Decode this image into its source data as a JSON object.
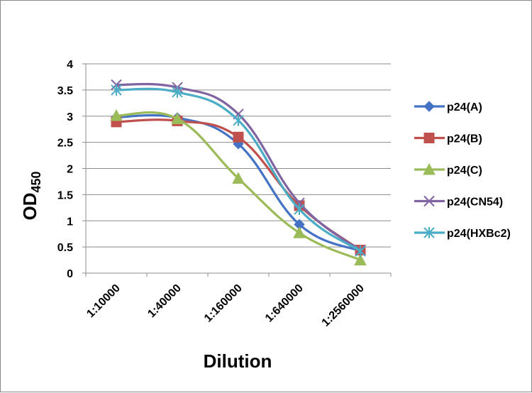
{
  "chart_data": {
    "type": "line",
    "title": "",
    "xlabel": "Dilution",
    "ylabel_main": "OD",
    "ylabel_sub": "450",
    "categories": [
      "1:10000",
      "1:40000",
      "1:160000",
      "1:640000",
      "1:2560000"
    ],
    "ylim": [
      0,
      4
    ],
    "yticks": [
      "0",
      "0.5",
      "1",
      "1.5",
      "2",
      "2.5",
      "3",
      "3.5",
      "4"
    ],
    "grid": true,
    "legend_position": "right",
    "series": [
      {
        "name": "p24(A)",
        "color": "#4472C4",
        "marker": "diamond",
        "values": [
          2.98,
          2.97,
          2.47,
          0.93,
          0.42
        ]
      },
      {
        "name": "p24(B)",
        "color": "#C0504D",
        "marker": "square",
        "values": [
          2.89,
          2.91,
          2.6,
          1.29,
          0.44
        ]
      },
      {
        "name": "p24(C)",
        "color": "#9BBB59",
        "marker": "triangle",
        "values": [
          3.01,
          2.95,
          1.81,
          0.77,
          0.25
        ]
      },
      {
        "name": "p24(CN54)",
        "color": "#8064A2",
        "marker": "x",
        "values": [
          3.6,
          3.55,
          3.04,
          1.34,
          0.43
        ]
      },
      {
        "name": "p24(HXBc2)",
        "color": "#4BACC6",
        "marker": "star",
        "values": [
          3.5,
          3.46,
          2.92,
          1.22,
          0.42
        ]
      }
    ]
  }
}
